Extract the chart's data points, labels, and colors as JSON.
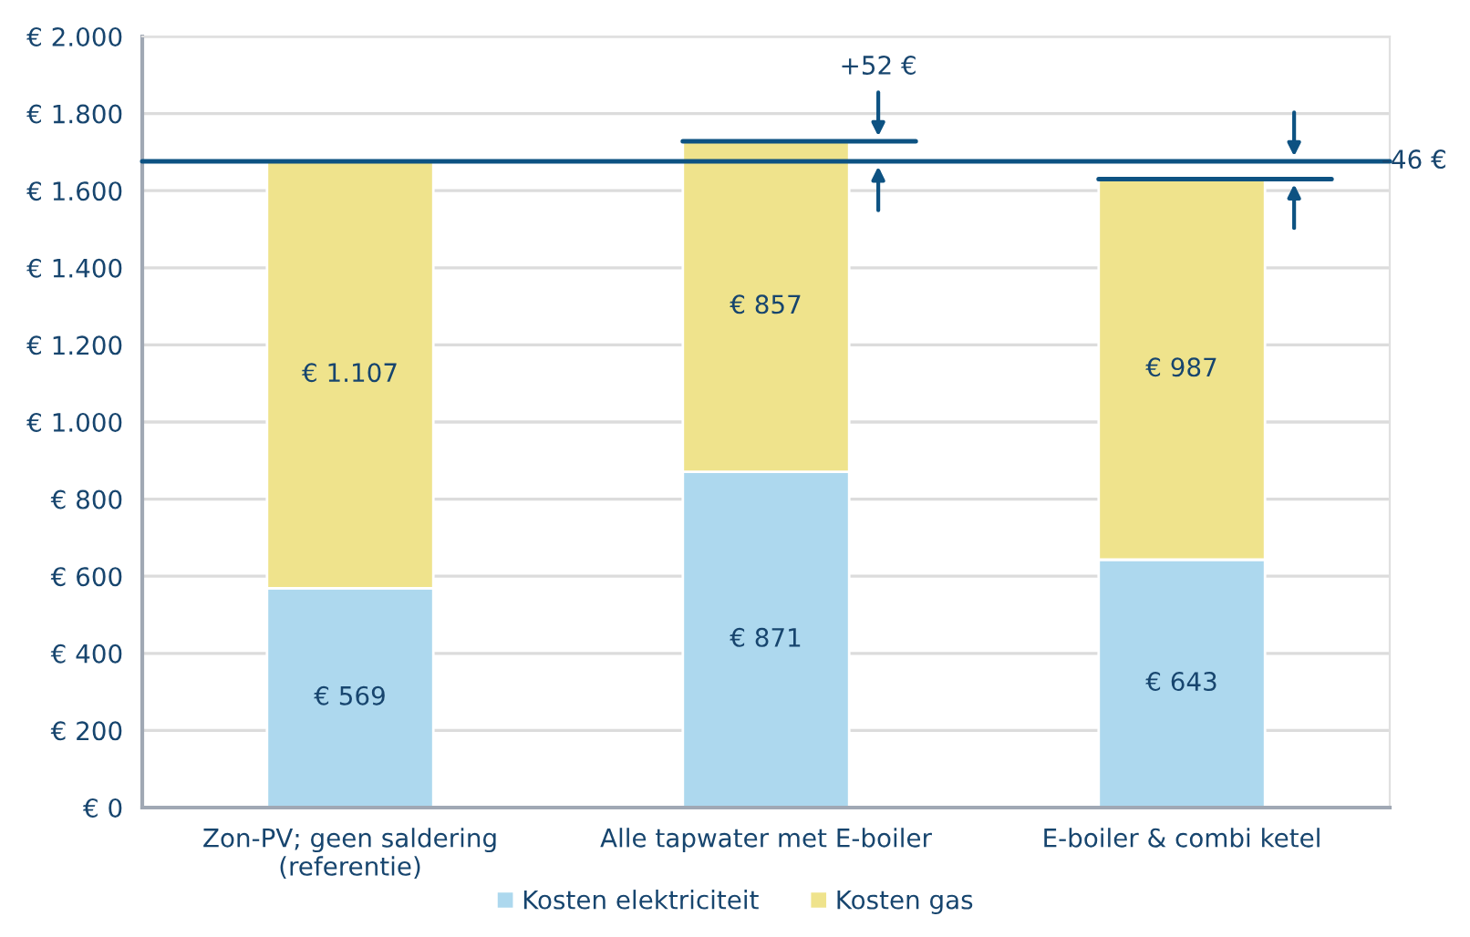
{
  "chart_data": {
    "type": "bar",
    "stacked": true,
    "categories": [
      "Zon-PV; geen saldering\n(referentie)",
      "Alle tapwater met E-boiler",
      "E-boiler & combi ketel"
    ],
    "series": [
      {
        "name": "Kosten elektriciteit",
        "color": "#add8ee",
        "values": [
          569,
          871,
          643
        ],
        "value_labels": [
          "€ 569",
          "€ 871",
          "€ 643"
        ]
      },
      {
        "name": "Kosten gas",
        "color": "#efe38c",
        "values": [
          1107,
          857,
          987
        ],
        "value_labels": [
          "€ 1.107",
          "€ 857",
          "€ 987"
        ]
      }
    ],
    "ylim": [
      0,
      2000
    ],
    "yticks": [
      {
        "value": 0,
        "label": "€ 0"
      },
      {
        "value": 200,
        "label": "€ 200"
      },
      {
        "value": 400,
        "label": "€ 400"
      },
      {
        "value": 600,
        "label": "€ 600"
      },
      {
        "value": 800,
        "label": "€ 800"
      },
      {
        "value": 1000,
        "label": "€ 1.000"
      },
      {
        "value": 1200,
        "label": "€ 1.200"
      },
      {
        "value": 1400,
        "label": "€ 1.400"
      },
      {
        "value": 1600,
        "label": "€ 1.600"
      },
      {
        "value": 1800,
        "label": "€ 1.800"
      },
      {
        "value": 2000,
        "label": "€ 2.000"
      }
    ],
    "ref_lines": [
      {
        "axis": "y",
        "value": 1676,
        "color": "#0d5282"
      }
    ],
    "annotations": [
      "+52 €",
      "-46 €"
    ],
    "grid": "y",
    "legend": "bottom"
  }
}
